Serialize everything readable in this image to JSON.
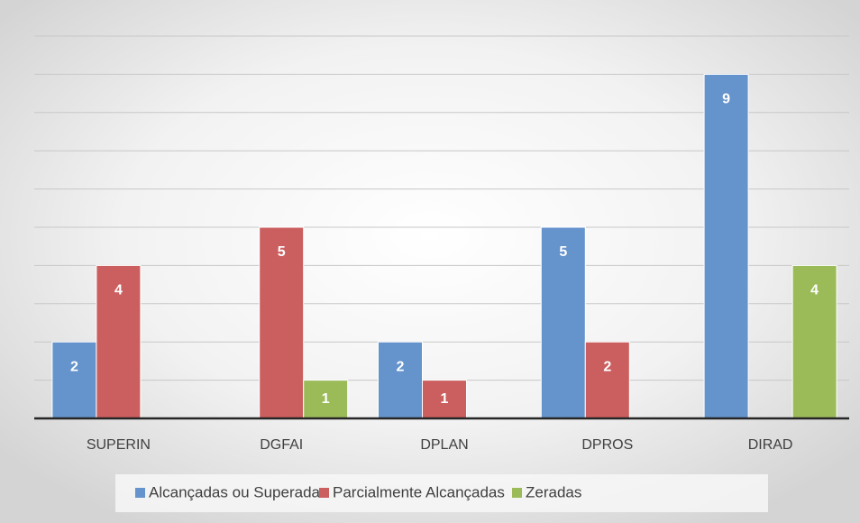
{
  "chart_data": {
    "type": "bar",
    "categories": [
      "SUPERIN",
      "DGFAI",
      "DPLAN",
      "DPROS",
      "DIRAD"
    ],
    "series": [
      {
        "name": "Alcançadas ou Superadas",
        "color": "#6593cc",
        "values": [
          2,
          null,
          2,
          5,
          9
        ]
      },
      {
        "name": "Parcialmente Alcançadas",
        "color": "#cb5f5f",
        "values": [
          4,
          5,
          1,
          2,
          null
        ]
      },
      {
        "name": "Zeradas",
        "color": "#9bbb59",
        "values": [
          null,
          1,
          null,
          null,
          4
        ]
      }
    ],
    "ylim": [
      0,
      10
    ],
    "yticks": [
      0,
      1,
      2,
      3,
      4,
      5,
      6,
      7,
      8,
      9,
      10
    ],
    "grid": true,
    "legend": "bottom"
  }
}
